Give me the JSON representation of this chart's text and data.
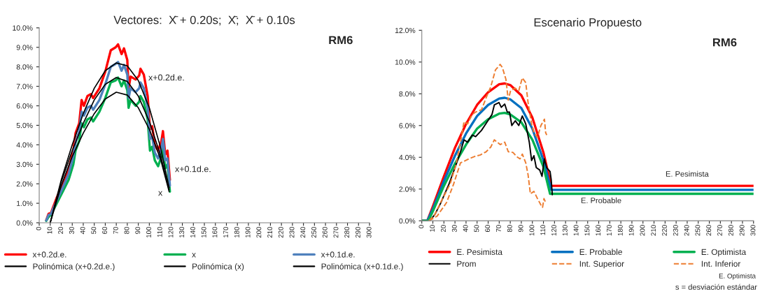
{
  "chart_data": [
    {
      "type": "line",
      "title": "Vectores:  X̄ + 0.20s;  X̄;  X̄ + 0.10s",
      "xlim": [
        0,
        300
      ],
      "xticks": [
        0,
        10,
        20,
        30,
        40,
        50,
        60,
        70,
        80,
        90,
        100,
        110,
        120,
        130,
        140,
        150,
        160,
        170,
        180,
        190,
        200,
        210,
        220,
        230,
        240,
        250,
        260,
        270,
        280,
        290,
        300
      ],
      "ylim": [
        0,
        10
      ],
      "yticks": [
        {
          "value": 0,
          "label": "0.0%"
        },
        {
          "value": 1,
          "label": "1.0%"
        },
        {
          "value": 2,
          "label": "2.0%"
        },
        {
          "value": 3,
          "label": "3.0%"
        },
        {
          "value": 4,
          "label": "4.0%"
        },
        {
          "value": 5,
          "label": "5.0%"
        },
        {
          "value": 6,
          "label": "6.0%"
        },
        {
          "value": 7,
          "label": "7.0%"
        },
        {
          "value": 8,
          "label": "8.0%"
        },
        {
          "value": 9,
          "label": "9.0%"
        },
        {
          "value": 10,
          "label": "10.0%"
        }
      ],
      "grid": false,
      "legend": "bottom",
      "line_style": "solid",
      "marker": "none",
      "series": [
        {
          "name": "x+0.2d.e.",
          "color": "#ff0000",
          "x": [
            6.4,
            8.5,
            10.6,
            16,
            21.4,
            26.7,
            31,
            33,
            36.3,
            38.5,
            40.6,
            43.8,
            47,
            49,
            54.7,
            60,
            65,
            69.4,
            71.6,
            74.8,
            77,
            80,
            81.2,
            83,
            87.6,
            90.8,
            92,
            95,
            98.5,
            100.6,
            102.6,
            105,
            108,
            111,
            112.4,
            114.5,
            116.5,
            118.7
          ],
          "values": [
            0.13,
            0.46,
            0.5,
            1.3,
            2.0,
            2.75,
            3.7,
            4.6,
            5.1,
            6.3,
            6.0,
            6.5,
            6.6,
            6.4,
            6.9,
            7.75,
            8.85,
            9.0,
            9.15,
            8.65,
            8.95,
            8.35,
            6.9,
            7.5,
            7.35,
            7.55,
            7.9,
            7.6,
            6.5,
            4.8,
            4.95,
            4.0,
            3.7,
            4.2,
            4.7,
            3.5,
            3.7,
            2.2
          ]
        },
        {
          "name": "x",
          "color": "#00b050",
          "x": [
            6.4,
            8.5,
            10.6,
            16,
            21.4,
            26.7,
            31,
            33,
            36.3,
            38.5,
            40.6,
            43.8,
            47,
            49,
            54.7,
            60,
            65,
            69.4,
            71.6,
            74.8,
            77,
            80,
            81.2,
            83,
            87.6,
            90.8,
            92,
            95,
            98.5,
            100.6,
            102.6,
            105,
            108,
            111,
            112.4,
            114.5,
            116.5,
            118.7
          ],
          "values": [
            0.1,
            0.3,
            0.4,
            1.0,
            1.6,
            2.2,
            3.0,
            3.7,
            4.2,
            5.1,
            4.9,
            5.3,
            5.4,
            5.2,
            5.7,
            6.4,
            7.2,
            7.3,
            7.45,
            7.0,
            7.3,
            6.8,
            5.9,
            6.3,
            6.0,
            6.2,
            6.5,
            6.2,
            5.3,
            3.7,
            3.9,
            3.2,
            2.9,
            3.4,
            3.8,
            2.8,
            3.0,
            1.6
          ]
        },
        {
          "name": "x+0.1d.e.",
          "color": "#4f81bd",
          "x": [
            6.4,
            8.5,
            10.6,
            16,
            21.4,
            26.7,
            31,
            33,
            36.3,
            38.5,
            40.6,
            43.8,
            47,
            49,
            54.7,
            60,
            65,
            69.4,
            71.6,
            74.8,
            77,
            80,
            81.2,
            83,
            87.6,
            90.8,
            92,
            95,
            98.5,
            100.6,
            102.6,
            105,
            108,
            111,
            112.4,
            114.5,
            116.5,
            118.7
          ],
          "values": [
            0.12,
            0.4,
            0.45,
            1.15,
            1.8,
            2.5,
            3.4,
            4.1,
            4.7,
            5.7,
            5.5,
            5.9,
            6.0,
            5.8,
            6.3,
            7.1,
            8.0,
            8.15,
            8.25,
            7.8,
            8.1,
            7.6,
            6.4,
            6.9,
            6.7,
            6.9,
            7.2,
            6.9,
            5.9,
            4.3,
            4.4,
            3.6,
            3.3,
            3.8,
            4.3,
            3.2,
            3.3,
            1.9
          ]
        },
        {
          "name": "Polinómica (x+0.2d.e.)",
          "color": "#000000",
          "x": [
            10,
            20,
            30,
            40,
            50,
            60,
            70,
            80,
            90,
            100,
            110,
            118
          ],
          "values": [
            0,
            2.2,
            4.0,
            5.6,
            6.9,
            7.8,
            8.2,
            8.05,
            7.3,
            5.9,
            3.9,
            1.8
          ]
        },
        {
          "name": "Polinómica (x)",
          "color": "#000000",
          "x": [
            10,
            20,
            30,
            40,
            50,
            60,
            70,
            80,
            90,
            100,
            110,
            118
          ],
          "values": [
            0,
            1.9,
            3.4,
            4.6,
            5.6,
            6.35,
            6.7,
            6.55,
            5.9,
            4.8,
            3.3,
            1.6
          ]
        },
        {
          "name": "Polinómica (x+0.1d.e.)",
          "color": "#000000",
          "x": [
            10,
            20,
            30,
            40,
            50,
            60,
            70,
            80,
            90,
            100,
            110,
            118
          ],
          "values": [
            0,
            2.1,
            3.7,
            5.1,
            6.3,
            7.1,
            7.45,
            7.25,
            6.5,
            5.2,
            3.5,
            1.7
          ]
        }
      ],
      "annotations": [
        "RM6",
        "x+0.2d.e.",
        "x+0.1d.e.",
        "x"
      ]
    },
    {
      "type": "line",
      "title": "Escenario Propuesto",
      "xlim": [
        0,
        300
      ],
      "xticks": [
        0,
        10,
        20,
        30,
        40,
        50,
        60,
        70,
        80,
        90,
        100,
        110,
        120,
        130,
        140,
        150,
        160,
        170,
        180,
        190,
        200,
        210,
        220,
        230,
        240,
        250,
        260,
        270,
        280,
        290,
        300
      ],
      "ylim": [
        0,
        12
      ],
      "yticks": [
        {
          "value": 0,
          "label": "0.0%"
        },
        {
          "value": 2,
          "label": "2.0%"
        },
        {
          "value": 4,
          "label": "4.0%"
        },
        {
          "value": 6,
          "label": "6.0%"
        },
        {
          "value": 8,
          "label": "8.0%"
        },
        {
          "value": 10,
          "label": "10.0%"
        },
        {
          "value": 12,
          "label": "12.0%"
        }
      ],
      "grid": false,
      "legend": "bottom",
      "marker": "none",
      "series": [
        {
          "name": "E. Pesimista",
          "color": "#ff0000",
          "x": [
            0,
            5,
            10,
            20,
            30,
            40,
            50,
            60,
            70,
            75,
            80,
            90,
            100,
            110,
            117,
            300
          ],
          "values": [
            0,
            0,
            0.9,
            2.8,
            4.6,
            6.1,
            7.3,
            8.1,
            8.6,
            8.65,
            8.55,
            7.9,
            6.5,
            4.3,
            2.2,
            2.2
          ]
        },
        {
          "name": "E. Probable",
          "color": "#0070c0",
          "x": [
            0,
            5,
            10,
            20,
            30,
            40,
            50,
            60,
            70,
            75,
            80,
            90,
            100,
            110,
            117,
            300
          ],
          "values": [
            0,
            0,
            0.75,
            2.5,
            4.1,
            5.5,
            6.6,
            7.3,
            7.7,
            7.75,
            7.65,
            7.1,
            5.8,
            3.8,
            1.95,
            1.95
          ]
        },
        {
          "name": "E. Optimista",
          "color": "#00b050",
          "x": [
            0,
            6,
            10,
            20,
            30,
            40,
            50,
            60,
            70,
            75,
            80,
            90,
            100,
            110,
            116,
            300
          ],
          "values": [
            0,
            0,
            0.6,
            2.2,
            3.6,
            4.8,
            5.8,
            6.4,
            6.75,
            6.8,
            6.7,
            6.2,
            5.1,
            3.4,
            1.7,
            1.7
          ]
        },
        {
          "name": "Prom",
          "color": "#000000",
          "x": [
            7.6,
            11.8,
            17,
            24.5,
            30.8,
            35,
            38.2,
            41.4,
            45.6,
            48.7,
            54,
            59.3,
            63.5,
            65.6,
            69.8,
            71.9,
            75,
            77.3,
            79.3,
            81.4,
            84.5,
            87.7,
            90.9,
            94,
            97.2,
            99.3,
            101.4,
            103.5,
            106.6,
            108.7,
            110.8,
            112.9,
            116,
            117,
            118
          ],
          "values": [
            0.03,
            0.4,
            1.1,
            2.3,
            3.5,
            4.35,
            5.1,
            4.95,
            5.4,
            5.3,
            5.7,
            6.25,
            6.7,
            7.3,
            7.45,
            7.15,
            7.35,
            6.85,
            6.85,
            6.0,
            6.3,
            6.0,
            6.6,
            6.1,
            4.95,
            3.8,
            4.1,
            3.35,
            3.2,
            2.8,
            3.9,
            3.35,
            3.1,
            2.6,
            1.65
          ]
        },
        {
          "name": "Int. Superior",
          "color": "#ed7d31",
          "line_style": "dashed",
          "x": [
            6.5,
            11.8,
            18.1,
            25.5,
            30.8,
            35,
            38.2,
            41.4,
            45.6,
            48.7,
            54,
            58.2,
            62.4,
            66.6,
            70.9,
            72.9,
            76.1,
            78.2,
            80.3,
            84.5,
            87.7,
            90.9,
            94,
            96.1,
            99.3,
            101.4,
            104.6,
            107.7,
            110.9,
            112,
            113
          ],
          "values": [
            0,
            0.4,
            1.3,
            2.3,
            3.5,
            4.95,
            6.25,
            6.1,
            6.7,
            6.85,
            7.0,
            7.75,
            8.45,
            9.5,
            9.85,
            9.65,
            8.9,
            7.6,
            8.2,
            8.35,
            8.2,
            9.0,
            8.7,
            7.45,
            6.1,
            5.55,
            5.25,
            6.0,
            6.4,
            5.55,
            5.4
          ]
        },
        {
          "name": "Int. Inferior",
          "color": "#ed7d31",
          "line_style": "dashed",
          "x": [
            6.5,
            13.9,
            22.4,
            28.7,
            35,
            38.2,
            42.4,
            47.7,
            53,
            58.2,
            62.4,
            65.6,
            70.9,
            75,
            78.2,
            82.5,
            85.7,
            88.8,
            90.9,
            94,
            96.1,
            98.2,
            101.4,
            104.6,
            107.7,
            109.2,
            110.5,
            112
          ],
          "values": [
            0,
            0.3,
            1.15,
            2.3,
            3.65,
            3.75,
            3.9,
            4.05,
            4.15,
            4.35,
            4.65,
            5.1,
            4.8,
            4.95,
            4.35,
            4.3,
            4.05,
            3.9,
            4.2,
            3.65,
            2.9,
            1.7,
            1.85,
            1.4,
            1.0,
            0.85,
            1.4,
            1.15
          ]
        }
      ],
      "annotations": [
        "RM6",
        "E. Pesimista",
        "E. Probable",
        "E. Optimista",
        "s = desviación estándar"
      ]
    }
  ]
}
